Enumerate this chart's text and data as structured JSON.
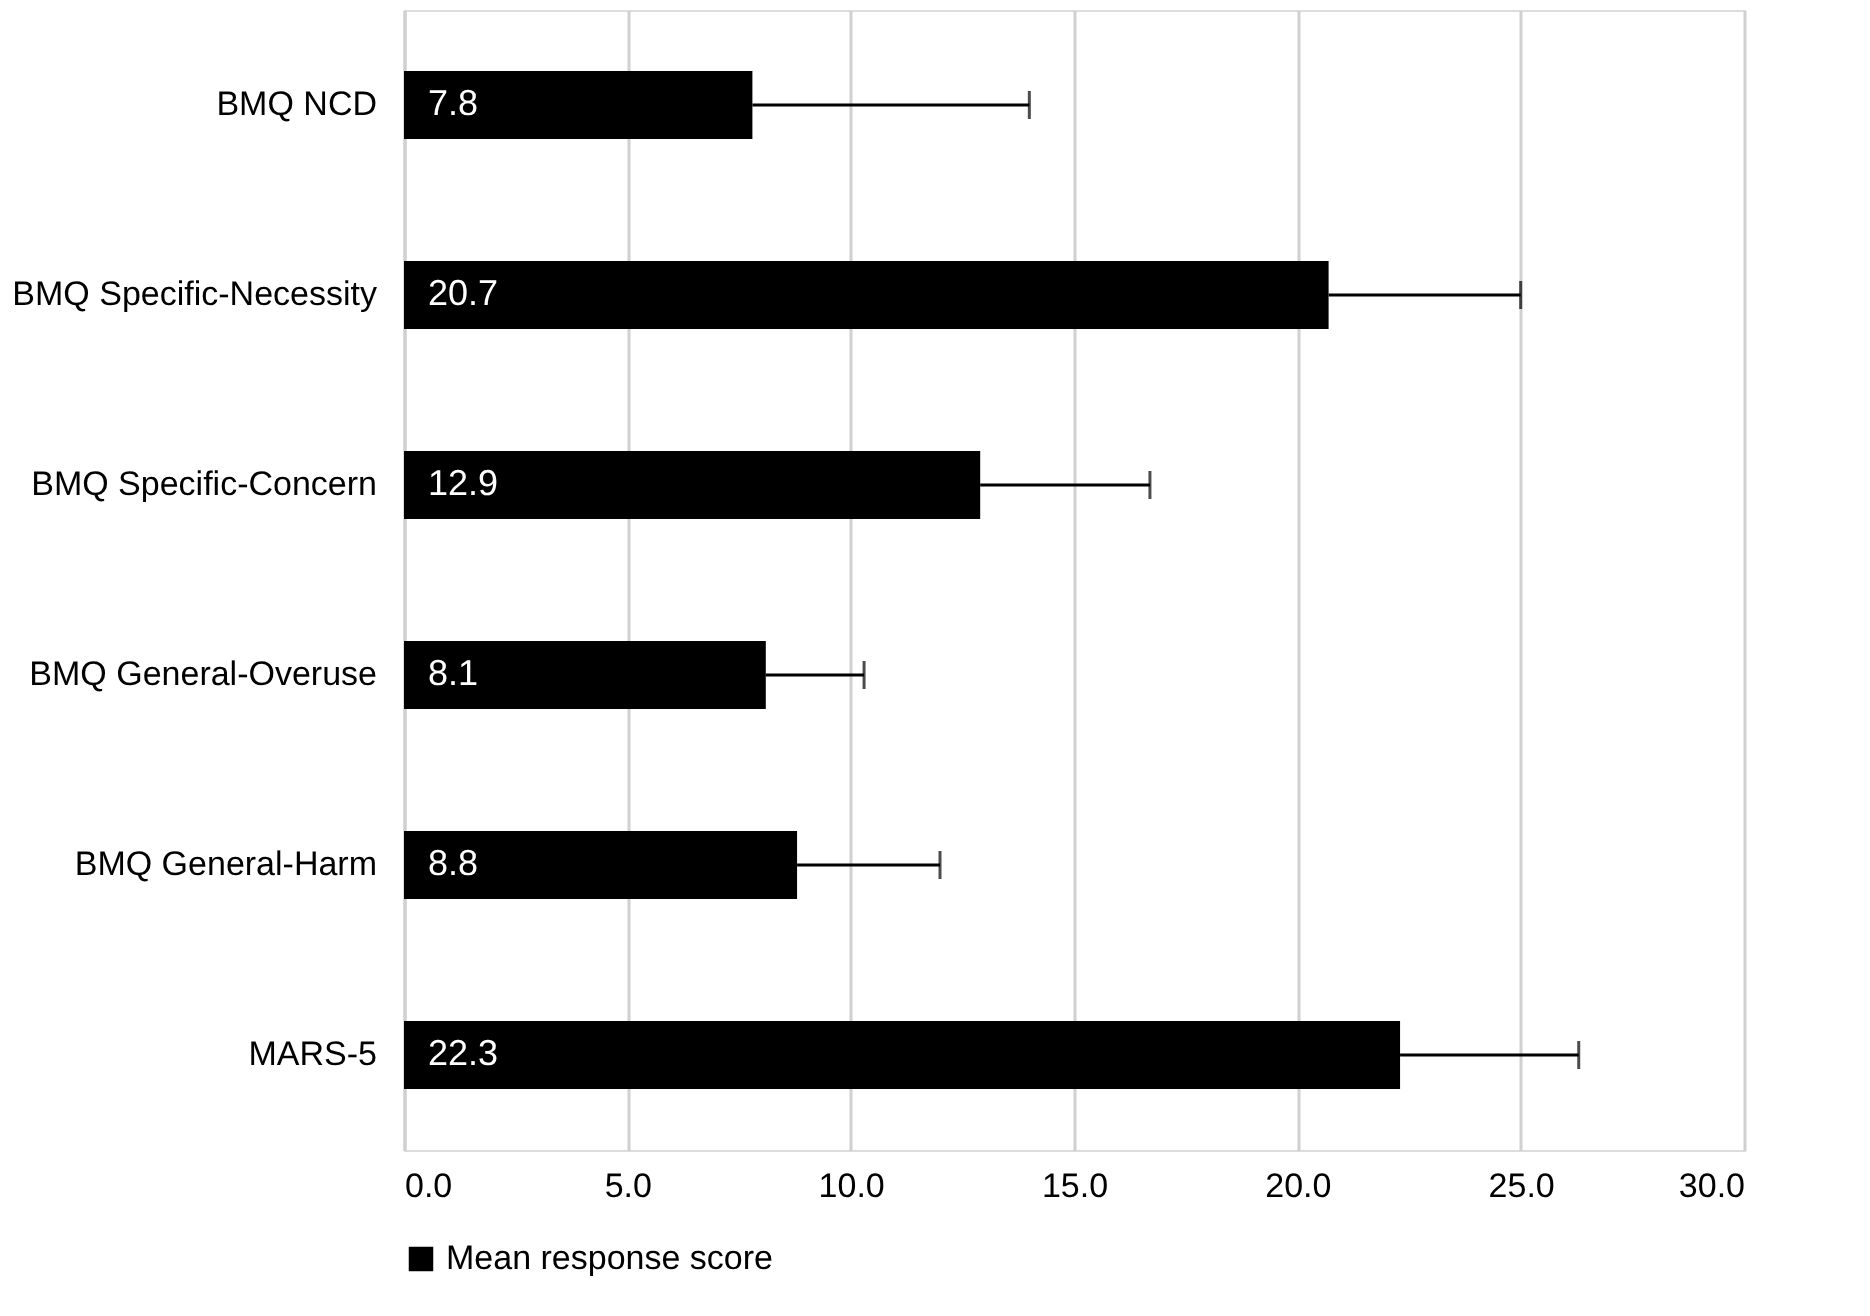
{
  "chart_data": {
    "type": "bar",
    "orientation": "horizontal",
    "categories": [
      "BMQ NCD",
      "BMQ Specific-Necessity ",
      "BMQ Specific-Concern",
      "BMQ General-Overuse",
      "BMQ General-Harm",
      "MARS-5"
    ],
    "series": [
      {
        "name": "Mean response score",
        "color": "#000000",
        "values": [
          7.8,
          20.7,
          12.9,
          8.1,
          8.8,
          22.3
        ],
        "errors": [
          [
            7.8,
            14.0
          ],
          [
            20.7,
            25.0
          ],
          [
            12.9,
            16.7
          ],
          [
            8.1,
            10.3
          ],
          [
            8.8,
            12.0
          ],
          [
            22.3,
            26.3
          ]
        ]
      }
    ],
    "xlim": [
      0,
      30
    ],
    "xticks": [
      {
        "value": 0,
        "label": "0.0"
      },
      {
        "value": 5,
        "label": "5.0"
      },
      {
        "value": 10,
        "label": "10.0"
      },
      {
        "value": 15,
        "label": "15.0"
      },
      {
        "value": 20,
        "label": "20.0"
      },
      {
        "value": 25,
        "label": "25.0"
      },
      {
        "value": 30,
        "label": "30.0"
      }
    ],
    "grid": "x",
    "legend": "bottom",
    "data_labels": true
  }
}
